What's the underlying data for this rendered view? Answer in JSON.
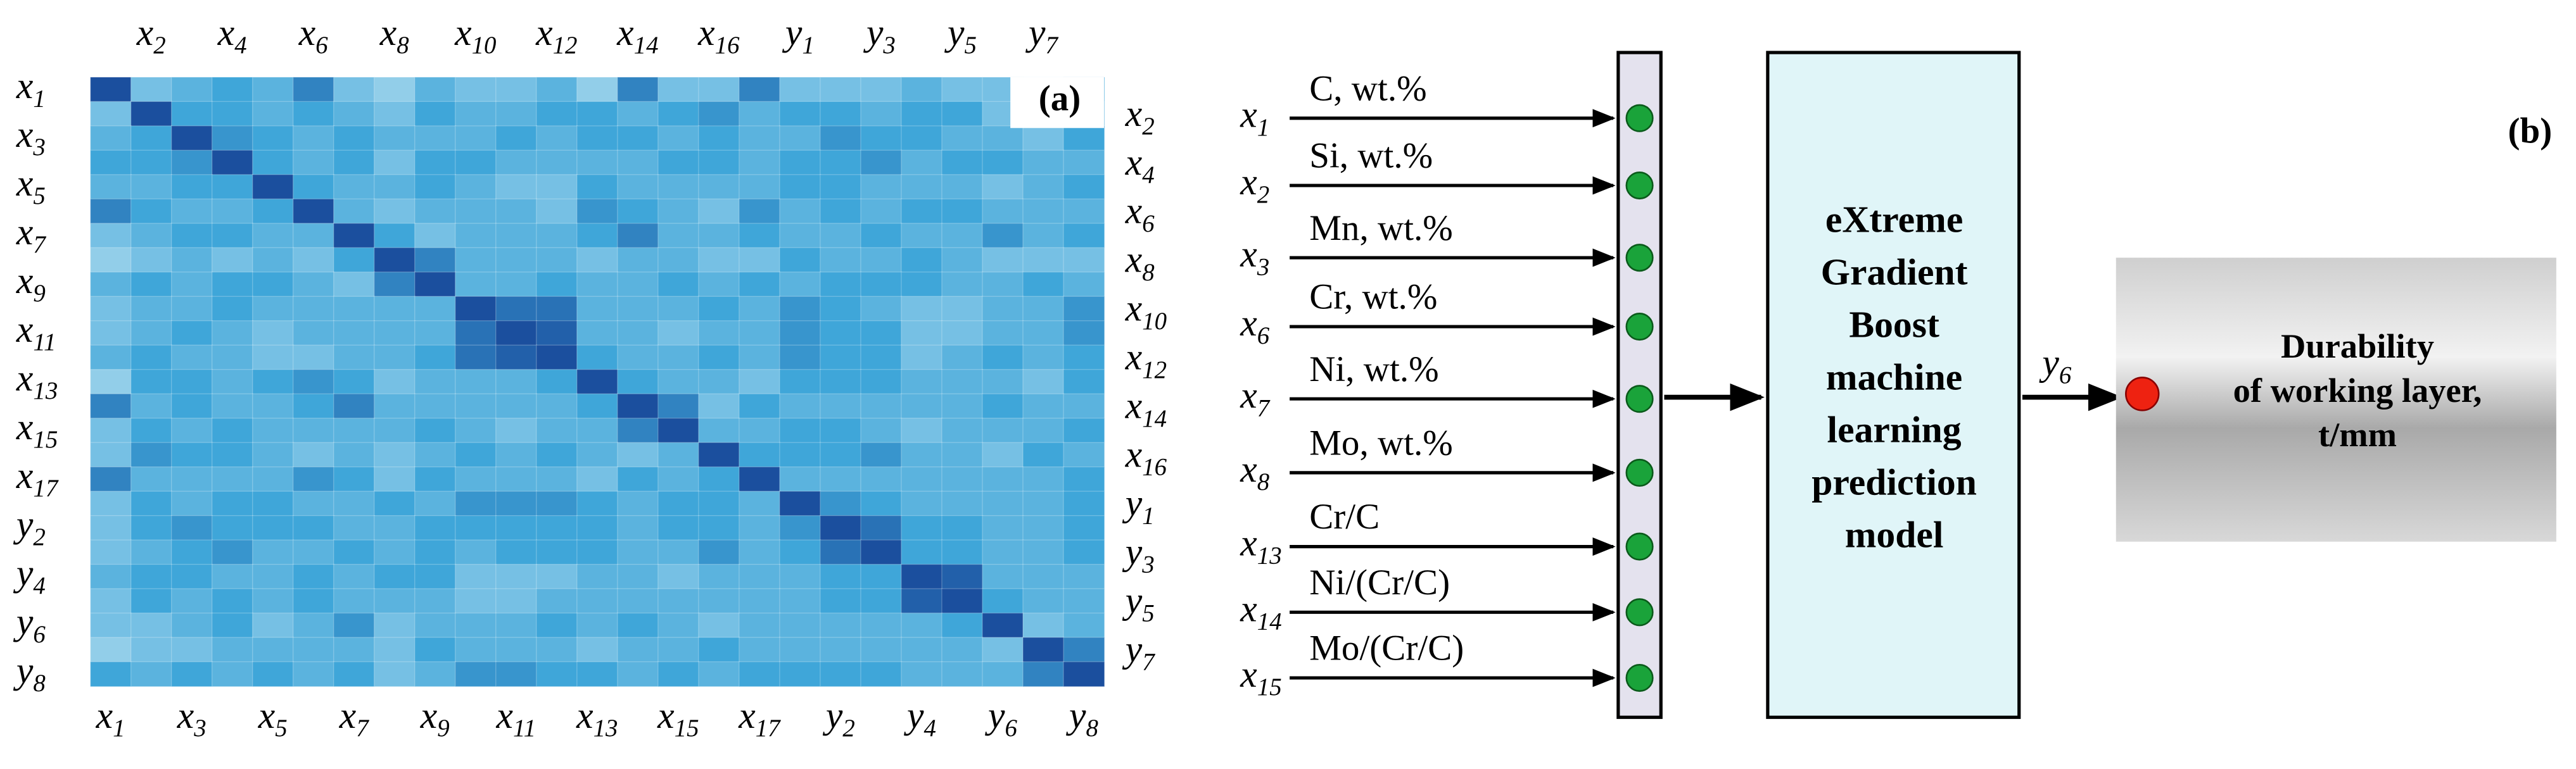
{
  "chart_data": {
    "type": "heatmap",
    "panel_label": "(a)",
    "variables": [
      [
        "x",
        "1"
      ],
      [
        "x",
        "2"
      ],
      [
        "x",
        "3"
      ],
      [
        "x",
        "4"
      ],
      [
        "x",
        "5"
      ],
      [
        "x",
        "6"
      ],
      [
        "x",
        "7"
      ],
      [
        "x",
        "8"
      ],
      [
        "x",
        "9"
      ],
      [
        "x",
        "10"
      ],
      [
        "x",
        "11"
      ],
      [
        "x",
        "12"
      ],
      [
        "x",
        "13"
      ],
      [
        "x",
        "14"
      ],
      [
        "x",
        "15"
      ],
      [
        "x",
        "16"
      ],
      [
        "x",
        "17"
      ],
      [
        "y",
        "1"
      ],
      [
        "y",
        "2"
      ],
      [
        "y",
        "3"
      ],
      [
        "y",
        "4"
      ],
      [
        "y",
        "5"
      ],
      [
        "y",
        "6"
      ],
      [
        "y",
        "7"
      ],
      [
        "y",
        "8"
      ]
    ],
    "colormap": [
      "#c9e8f4",
      "#3fa6d9",
      "#1b4f9e"
    ],
    "values": [
      [
        1.0,
        0.3,
        0.4,
        0.5,
        0.4,
        0.7,
        0.3,
        0.2,
        0.4,
        0.3,
        0.3,
        0.4,
        0.2,
        0.7,
        0.3,
        0.3,
        0.7,
        0.3,
        0.3,
        0.3,
        0.4,
        0.3,
        0.3,
        0.2,
        0.5
      ],
      [
        0.3,
        1.0,
        0.5,
        0.5,
        0.4,
        0.5,
        0.4,
        0.3,
        0.5,
        0.4,
        0.4,
        0.5,
        0.5,
        0.4,
        0.5,
        0.6,
        0.4,
        0.5,
        0.5,
        0.4,
        0.5,
        0.5,
        0.3,
        0.3,
        0.4
      ],
      [
        0.4,
        0.5,
        1.0,
        0.6,
        0.5,
        0.4,
        0.5,
        0.4,
        0.4,
        0.4,
        0.5,
        0.4,
        0.5,
        0.5,
        0.4,
        0.5,
        0.4,
        0.4,
        0.6,
        0.5,
        0.5,
        0.4,
        0.4,
        0.3,
        0.5
      ],
      [
        0.5,
        0.5,
        0.6,
        1.0,
        0.5,
        0.4,
        0.5,
        0.3,
        0.5,
        0.5,
        0.4,
        0.4,
        0.4,
        0.4,
        0.5,
        0.5,
        0.4,
        0.5,
        0.5,
        0.6,
        0.4,
        0.5,
        0.5,
        0.4,
        0.4
      ],
      [
        0.4,
        0.4,
        0.5,
        0.5,
        1.0,
        0.5,
        0.4,
        0.4,
        0.5,
        0.4,
        0.3,
        0.3,
        0.5,
        0.4,
        0.4,
        0.4,
        0.4,
        0.5,
        0.5,
        0.4,
        0.4,
        0.4,
        0.3,
        0.4,
        0.5
      ],
      [
        0.7,
        0.5,
        0.4,
        0.4,
        0.5,
        1.0,
        0.4,
        0.3,
        0.4,
        0.4,
        0.4,
        0.3,
        0.6,
        0.5,
        0.4,
        0.3,
        0.6,
        0.4,
        0.5,
        0.4,
        0.5,
        0.5,
        0.4,
        0.4,
        0.4
      ],
      [
        0.3,
        0.4,
        0.5,
        0.5,
        0.4,
        0.4,
        1.0,
        0.5,
        0.3,
        0.4,
        0.4,
        0.4,
        0.5,
        0.7,
        0.4,
        0.4,
        0.5,
        0.4,
        0.4,
        0.5,
        0.4,
        0.4,
        0.6,
        0.4,
        0.5
      ],
      [
        0.2,
        0.3,
        0.4,
        0.3,
        0.4,
        0.3,
        0.5,
        1.0,
        0.7,
        0.4,
        0.4,
        0.4,
        0.3,
        0.4,
        0.4,
        0.3,
        0.3,
        0.5,
        0.4,
        0.4,
        0.5,
        0.4,
        0.3,
        0.3,
        0.3
      ],
      [
        0.4,
        0.5,
        0.4,
        0.5,
        0.5,
        0.4,
        0.3,
        0.7,
        1.0,
        0.4,
        0.4,
        0.5,
        0.4,
        0.4,
        0.5,
        0.4,
        0.5,
        0.4,
        0.5,
        0.5,
        0.5,
        0.4,
        0.4,
        0.5,
        0.4
      ],
      [
        0.3,
        0.4,
        0.4,
        0.5,
        0.4,
        0.4,
        0.4,
        0.4,
        0.4,
        1.0,
        0.8,
        0.8,
        0.4,
        0.4,
        0.4,
        0.5,
        0.4,
        0.6,
        0.5,
        0.4,
        0.3,
        0.3,
        0.4,
        0.4,
        0.6
      ],
      [
        0.3,
        0.4,
        0.5,
        0.4,
        0.3,
        0.4,
        0.4,
        0.4,
        0.4,
        0.8,
        1.0,
        0.9,
        0.4,
        0.4,
        0.3,
        0.4,
        0.4,
        0.6,
        0.5,
        0.5,
        0.3,
        0.3,
        0.4,
        0.4,
        0.6
      ],
      [
        0.4,
        0.5,
        0.4,
        0.4,
        0.3,
        0.3,
        0.4,
        0.4,
        0.5,
        0.8,
        0.9,
        1.0,
        0.5,
        0.4,
        0.4,
        0.5,
        0.4,
        0.6,
        0.5,
        0.5,
        0.3,
        0.4,
        0.5,
        0.4,
        0.5
      ],
      [
        0.2,
        0.5,
        0.5,
        0.4,
        0.5,
        0.6,
        0.5,
        0.3,
        0.4,
        0.4,
        0.4,
        0.5,
        1.0,
        0.5,
        0.4,
        0.4,
        0.3,
        0.5,
        0.5,
        0.5,
        0.4,
        0.4,
        0.4,
        0.3,
        0.5
      ],
      [
        0.7,
        0.4,
        0.5,
        0.4,
        0.4,
        0.5,
        0.7,
        0.4,
        0.4,
        0.4,
        0.4,
        0.4,
        0.5,
        1.0,
        0.7,
        0.3,
        0.5,
        0.4,
        0.4,
        0.4,
        0.4,
        0.4,
        0.5,
        0.4,
        0.4
      ],
      [
        0.3,
        0.5,
        0.4,
        0.5,
        0.4,
        0.4,
        0.4,
        0.4,
        0.5,
        0.4,
        0.3,
        0.4,
        0.4,
        0.7,
        1.0,
        0.4,
        0.4,
        0.5,
        0.5,
        0.4,
        0.3,
        0.4,
        0.4,
        0.4,
        0.5
      ],
      [
        0.3,
        0.6,
        0.5,
        0.5,
        0.4,
        0.3,
        0.4,
        0.3,
        0.4,
        0.5,
        0.4,
        0.5,
        0.4,
        0.3,
        0.4,
        1.0,
        0.5,
        0.5,
        0.5,
        0.6,
        0.4,
        0.4,
        0.3,
        0.5,
        0.4
      ],
      [
        0.7,
        0.4,
        0.4,
        0.4,
        0.4,
        0.6,
        0.5,
        0.3,
        0.5,
        0.4,
        0.4,
        0.4,
        0.3,
        0.5,
        0.4,
        0.5,
        1.0,
        0.4,
        0.4,
        0.4,
        0.4,
        0.4,
        0.4,
        0.4,
        0.5
      ],
      [
        0.3,
        0.5,
        0.4,
        0.5,
        0.5,
        0.4,
        0.4,
        0.5,
        0.4,
        0.6,
        0.6,
        0.6,
        0.5,
        0.4,
        0.5,
        0.5,
        0.4,
        1.0,
        0.6,
        0.5,
        0.4,
        0.4,
        0.4,
        0.4,
        0.5
      ],
      [
        0.3,
        0.5,
        0.6,
        0.5,
        0.5,
        0.5,
        0.4,
        0.4,
        0.5,
        0.5,
        0.5,
        0.5,
        0.5,
        0.4,
        0.5,
        0.5,
        0.4,
        0.6,
        1.0,
        0.8,
        0.5,
        0.5,
        0.4,
        0.4,
        0.5
      ],
      [
        0.3,
        0.4,
        0.5,
        0.6,
        0.4,
        0.4,
        0.5,
        0.4,
        0.5,
        0.4,
        0.5,
        0.5,
        0.5,
        0.4,
        0.4,
        0.6,
        0.4,
        0.5,
        0.8,
        1.0,
        0.5,
        0.5,
        0.4,
        0.4,
        0.5
      ],
      [
        0.4,
        0.5,
        0.5,
        0.4,
        0.4,
        0.5,
        0.4,
        0.5,
        0.5,
        0.3,
        0.3,
        0.3,
        0.4,
        0.4,
        0.3,
        0.4,
        0.4,
        0.4,
        0.5,
        0.5,
        1.0,
        0.9,
        0.4,
        0.4,
        0.4
      ],
      [
        0.3,
        0.5,
        0.4,
        0.5,
        0.4,
        0.5,
        0.4,
        0.4,
        0.4,
        0.3,
        0.3,
        0.4,
        0.4,
        0.4,
        0.4,
        0.4,
        0.4,
        0.4,
        0.5,
        0.5,
        0.9,
        1.0,
        0.5,
        0.4,
        0.4
      ],
      [
        0.3,
        0.3,
        0.4,
        0.5,
        0.3,
        0.4,
        0.6,
        0.3,
        0.4,
        0.4,
        0.4,
        0.5,
        0.4,
        0.5,
        0.4,
        0.3,
        0.4,
        0.4,
        0.4,
        0.4,
        0.4,
        0.5,
        1.0,
        0.3,
        0.4
      ],
      [
        0.2,
        0.3,
        0.3,
        0.4,
        0.4,
        0.4,
        0.4,
        0.3,
        0.5,
        0.4,
        0.4,
        0.4,
        0.3,
        0.4,
        0.4,
        0.5,
        0.4,
        0.4,
        0.4,
        0.4,
        0.4,
        0.4,
        0.3,
        1.0,
        0.7
      ],
      [
        0.5,
        0.4,
        0.5,
        0.4,
        0.5,
        0.4,
        0.5,
        0.3,
        0.4,
        0.6,
        0.6,
        0.5,
        0.5,
        0.4,
        0.5,
        0.4,
        0.5,
        0.5,
        0.5,
        0.5,
        0.4,
        0.4,
        0.4,
        0.7,
        1.0
      ]
    ]
  },
  "diagram": {
    "panel_label": "(b)",
    "inputs": [
      {
        "var": [
          "x",
          "1"
        ],
        "label": "C, wt.%"
      },
      {
        "var": [
          "x",
          "2"
        ],
        "label": "Si, wt.%"
      },
      {
        "var": [
          "x",
          "3"
        ],
        "label": "Mn, wt.%"
      },
      {
        "var": [
          "x",
          "6"
        ],
        "label": "Cr, wt.%"
      },
      {
        "var": [
          "x",
          "7"
        ],
        "label": "Ni, wt.%"
      },
      {
        "var": [
          "x",
          "8"
        ],
        "label": "Mo, wt.%"
      },
      {
        "var": [
          "x",
          "13"
        ],
        "label": "Cr/C"
      },
      {
        "var": [
          "x",
          "14"
        ],
        "label": "Ni/(Cr/C)"
      },
      {
        "var": [
          "x",
          "15"
        ],
        "label": "Mo/(Cr/C)"
      }
    ],
    "model_lines": [
      "eXtreme",
      "Gradient",
      "Boost",
      "machine",
      "learning",
      "prediction",
      "model"
    ],
    "output_var": [
      "y",
      "6"
    ],
    "output_lines": [
      "Durability",
      "of working layer,",
      "t/mm"
    ]
  }
}
